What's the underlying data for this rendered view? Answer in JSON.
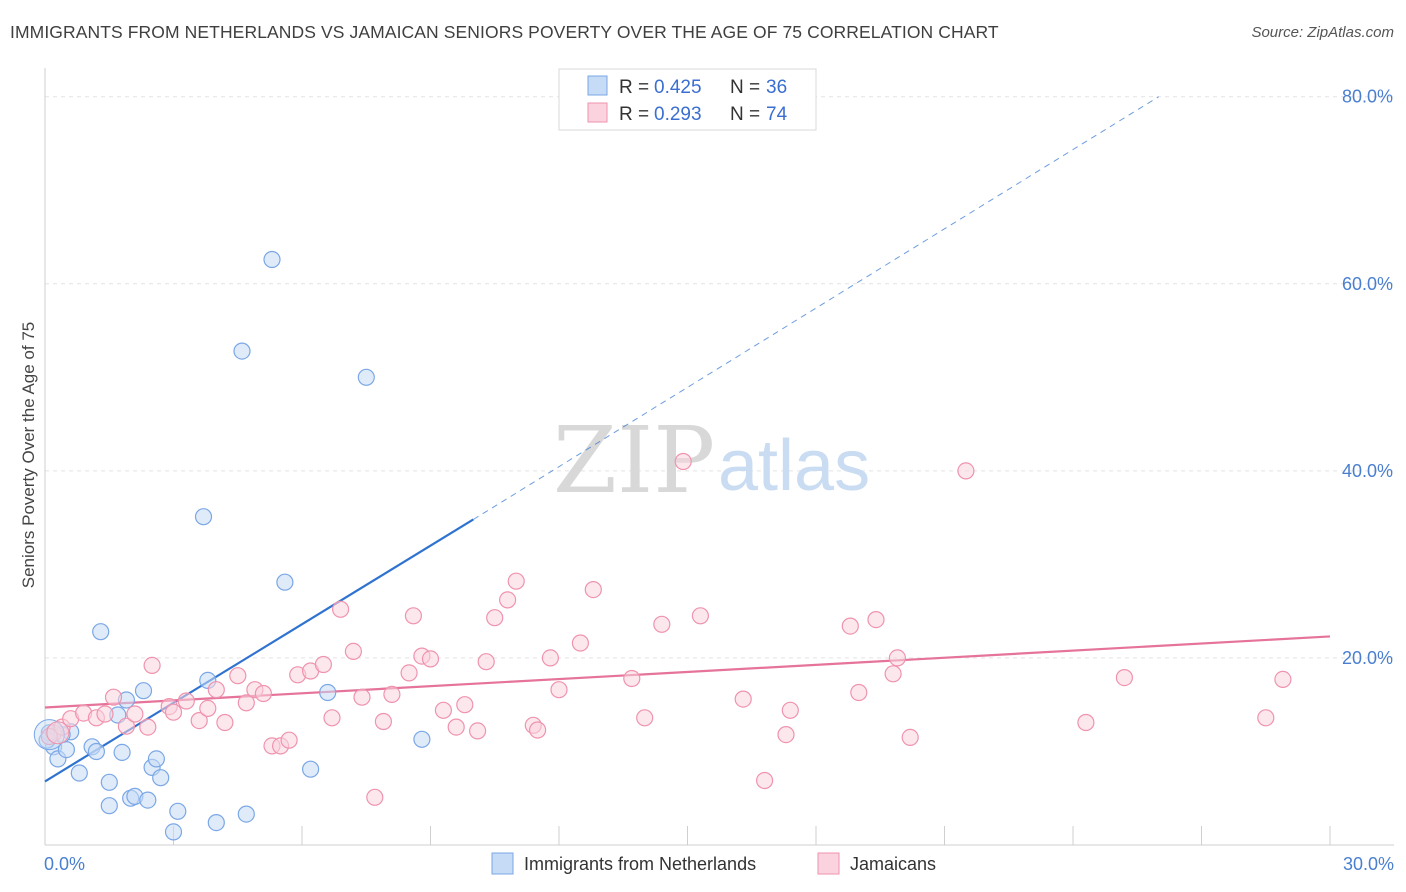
{
  "header": {
    "title": "IMMIGRANTS FROM NETHERLANDS VS JAMAICAN SENIORS POVERTY OVER THE AGE OF 75 CORRELATION CHART",
    "source": "Source: ZipAtlas.com"
  },
  "watermark": {
    "zip": "ZIP",
    "atlas": "atlas"
  },
  "legend_top": {
    "rows": [
      {
        "r_label": "R =",
        "r_value": "0.425",
        "n_label": "N =",
        "n_value": "36",
        "color": "#aecbf0"
      },
      {
        "r_label": "R =",
        "r_value": "0.293",
        "n_label": "N =",
        "n_value": "74",
        "color": "#f7bfcf"
      }
    ]
  },
  "legend_bottom": {
    "items": [
      {
        "label": "Immigrants from Netherlands",
        "color": "#aecbf0"
      },
      {
        "label": "Jamaicans",
        "color": "#f7bfcf"
      }
    ]
  },
  "chart_data": {
    "type": "scatter",
    "title": "IMMIGRANTS FROM NETHERLANDS VS JAMAICAN SENIORS POVERTY OVER THE AGE OF 75 CORRELATION CHART",
    "xlabel": "",
    "ylabel": "Seniors Poverty Over the Age of 75",
    "xlim": [
      0,
      30
    ],
    "ylim": [
      0,
      82
    ],
    "x_ticks": [
      {
        "value": 0,
        "label": "0.0%"
      },
      {
        "value": 30,
        "label": "30.0%"
      }
    ],
    "y_ticks": [
      {
        "value": 20,
        "label": "20.0%"
      },
      {
        "value": 40,
        "label": "40.0%"
      },
      {
        "value": 60,
        "label": "60.0%"
      },
      {
        "value": 80,
        "label": "80.0%"
      }
    ],
    "grid": true,
    "legend": "top-center",
    "series": [
      {
        "name": "Immigrants from Netherlands",
        "color": "#7aa7e6",
        "fill": "#c6dbf5",
        "points": [
          [
            0.1,
            12.0
          ],
          [
            0.2,
            10.5
          ],
          [
            0.3,
            9.2
          ],
          [
            0.5,
            10.2
          ],
          [
            0.6,
            12.1
          ],
          [
            0.8,
            7.7
          ],
          [
            1.1,
            10.5
          ],
          [
            1.2,
            10.0
          ],
          [
            1.3,
            22.8
          ],
          [
            1.5,
            4.2
          ],
          [
            1.5,
            6.7
          ],
          [
            1.7,
            13.9
          ],
          [
            1.8,
            9.9
          ],
          [
            1.9,
            15.5
          ],
          [
            2.0,
            5.0
          ],
          [
            2.1,
            5.2
          ],
          [
            2.3,
            16.5
          ],
          [
            2.4,
            4.8
          ],
          [
            2.5,
            8.3
          ],
          [
            2.6,
            9.2
          ],
          [
            2.7,
            7.2
          ],
          [
            3.0,
            1.4
          ],
          [
            3.1,
            3.6
          ],
          [
            3.7,
            35.1
          ],
          [
            3.8,
            17.6
          ],
          [
            4.0,
            2.4
          ],
          [
            4.6,
            52.8
          ],
          [
            4.7,
            3.3
          ],
          [
            5.3,
            62.6
          ],
          [
            5.6,
            28.1
          ],
          [
            6.2,
            8.1
          ],
          [
            6.6,
            16.3
          ],
          [
            7.5,
            50.0
          ],
          [
            8.8,
            11.3
          ],
          [
            0.05,
            11.2
          ],
          [
            0.4,
            11.8
          ]
        ]
      },
      {
        "name": "Jamaicans",
        "color": "#ef93ae",
        "fill": "#fad3de",
        "points": [
          [
            0.2,
            12.0
          ],
          [
            0.4,
            12.6
          ],
          [
            0.6,
            13.5
          ],
          [
            0.9,
            14.1
          ],
          [
            1.2,
            13.6
          ],
          [
            1.4,
            14.0
          ],
          [
            1.6,
            15.8
          ],
          [
            1.9,
            12.7
          ],
          [
            2.1,
            14.0
          ],
          [
            2.4,
            12.6
          ],
          [
            2.5,
            19.2
          ],
          [
            2.9,
            14.8
          ],
          [
            3.0,
            14.2
          ],
          [
            3.3,
            15.4
          ],
          [
            3.6,
            13.3
          ],
          [
            3.8,
            14.6
          ],
          [
            4.0,
            16.6
          ],
          [
            4.2,
            13.1
          ],
          [
            4.5,
            18.1
          ],
          [
            4.7,
            15.2
          ],
          [
            4.9,
            16.6
          ],
          [
            5.1,
            16.2
          ],
          [
            5.3,
            10.6
          ],
          [
            5.5,
            10.6
          ],
          [
            5.7,
            11.2
          ],
          [
            5.9,
            18.2
          ],
          [
            6.2,
            18.6
          ],
          [
            6.5,
            19.3
          ],
          [
            6.7,
            13.6
          ],
          [
            6.9,
            25.2
          ],
          [
            7.2,
            20.7
          ],
          [
            7.4,
            15.8
          ],
          [
            7.7,
            5.1
          ],
          [
            7.9,
            13.2
          ],
          [
            8.1,
            16.1
          ],
          [
            8.5,
            18.4
          ],
          [
            8.6,
            24.5
          ],
          [
            8.8,
            20.2
          ],
          [
            9.0,
            19.9
          ],
          [
            9.3,
            14.4
          ],
          [
            9.6,
            12.6
          ],
          [
            9.8,
            15.0
          ],
          [
            10.1,
            12.2
          ],
          [
            10.3,
            19.6
          ],
          [
            10.5,
            24.3
          ],
          [
            10.8,
            26.2
          ],
          [
            11.0,
            28.2
          ],
          [
            11.4,
            12.8
          ],
          [
            11.5,
            12.3
          ],
          [
            11.8,
            20.0
          ],
          [
            12.0,
            16.6
          ],
          [
            12.5,
            21.6
          ],
          [
            12.8,
            27.3
          ],
          [
            13.7,
            17.8
          ],
          [
            14.0,
            13.6
          ],
          [
            14.4,
            23.6
          ],
          [
            14.9,
            41.0
          ],
          [
            15.3,
            24.5
          ],
          [
            16.3,
            15.6
          ],
          [
            16.8,
            6.9
          ],
          [
            17.3,
            11.8
          ],
          [
            17.4,
            14.4
          ],
          [
            18.8,
            23.4
          ],
          [
            19.0,
            16.3
          ],
          [
            19.4,
            24.1
          ],
          [
            19.8,
            18.3
          ],
          [
            19.9,
            20.0
          ],
          [
            20.2,
            11.5
          ],
          [
            21.5,
            40.0
          ],
          [
            24.3,
            13.1
          ],
          [
            25.2,
            17.9
          ],
          [
            28.5,
            13.6
          ],
          [
            28.9,
            17.7
          ],
          [
            0.1,
            11.6
          ]
        ]
      }
    ],
    "trend_lines": [
      {
        "series": "Immigrants from Netherlands",
        "color": "#2f73d0",
        "x0": 0,
        "y0": 6.8,
        "x1": 10.0,
        "y1": 34.8,
        "extends_dashed_to": [
          26.0,
          80.0
        ]
      },
      {
        "series": "Jamaicans",
        "color": "#e5739a",
        "x0": 0,
        "y0": 14.7,
        "x1": 30.0,
        "y1": 22.3
      }
    ]
  }
}
